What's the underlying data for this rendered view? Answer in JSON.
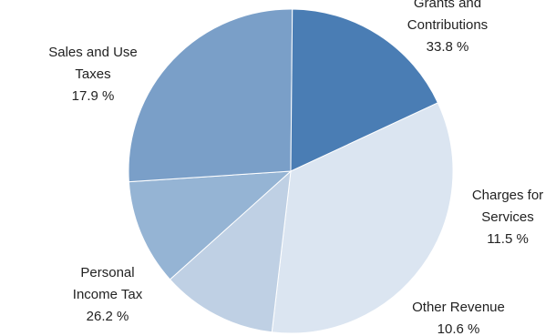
{
  "chart_data": {
    "type": "pie",
    "title": "",
    "slices": [
      {
        "label_lines": [
          "Grants and",
          "Contributions"
        ],
        "value": 33.8,
        "value_label": "33.8 %",
        "color": "#dbe5f1"
      },
      {
        "label_lines": [
          "Charges for",
          "Services"
        ],
        "value": 11.5,
        "value_label": "11.5 %",
        "color": "#bfd0e4"
      },
      {
        "label_lines": [
          "Other Revenue"
        ],
        "value": 10.6,
        "value_label": "10.6 %",
        "color": "#95b4d4"
      },
      {
        "label_lines": [
          "Personal",
          "Income Tax"
        ],
        "value": 26.2,
        "value_label": "26.2 %",
        "color": "#7a9fc8"
      },
      {
        "label_lines": [
          "Sales and Use",
          "Taxes"
        ],
        "value": 17.9,
        "value_label": "17.9 %",
        "color": "#4a7db4"
      }
    ],
    "start_angle_deg": -25,
    "direction": "clockwise",
    "legend": "none"
  }
}
